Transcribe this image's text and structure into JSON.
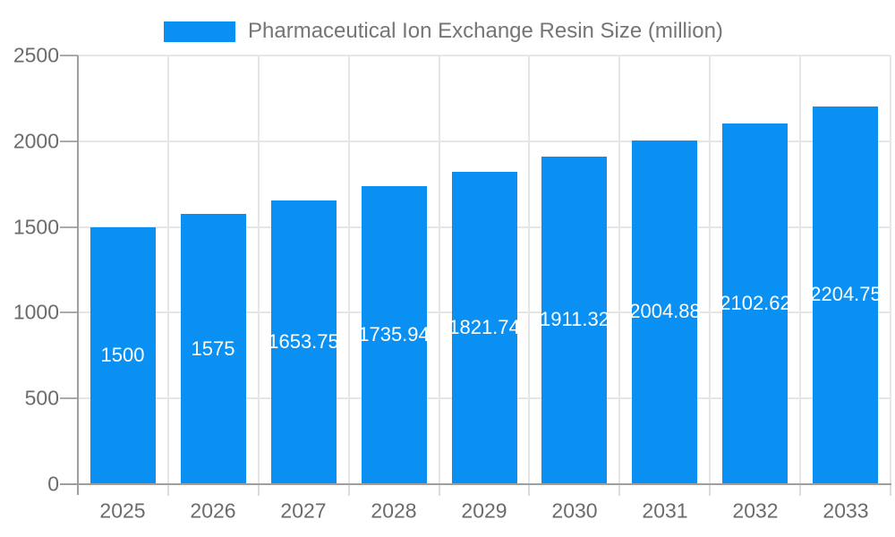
{
  "chart_data": {
    "type": "bar",
    "title": "Pharmaceutical Ion Exchange Resin Size (million)",
    "legend": {
      "position": "top",
      "entries": [
        "Pharmaceutical Ion Exchange Resin Size (million)"
      ]
    },
    "categories": [
      "2025",
      "2026",
      "2027",
      "2028",
      "2029",
      "2030",
      "2031",
      "2032",
      "2033"
    ],
    "series": [
      {
        "name": "Pharmaceutical Ion Exchange Resin Size (million)",
        "values": [
          1500,
          1575,
          1653.75,
          1735.94,
          1821.74,
          1911.32,
          2004.88,
          2102.62,
          2204.75
        ]
      }
    ],
    "bar_value_labels": [
      "1500",
      "1575",
      "1653.75",
      "1735.94",
      "1821.74",
      "1911.32",
      "2004.88",
      "2102.62",
      "2204.75"
    ],
    "xlabel": "",
    "ylabel": "",
    "ylim": [
      0,
      2500
    ],
    "yticks": [
      0,
      500,
      1000,
      1500,
      2000,
      2500
    ],
    "grid": true,
    "colors": {
      "bar": "#0990f2",
      "grid_line": "#e6e6e6",
      "axis_line": "#9e9e9e",
      "y_tick_mark": "#ababab",
      "x_tick_mark": "#dcdcdc",
      "axis_label_text": "#6b6b6b",
      "title_text": "#757575",
      "bar_label_text": "#ffffff",
      "background": "#ffffff"
    }
  }
}
